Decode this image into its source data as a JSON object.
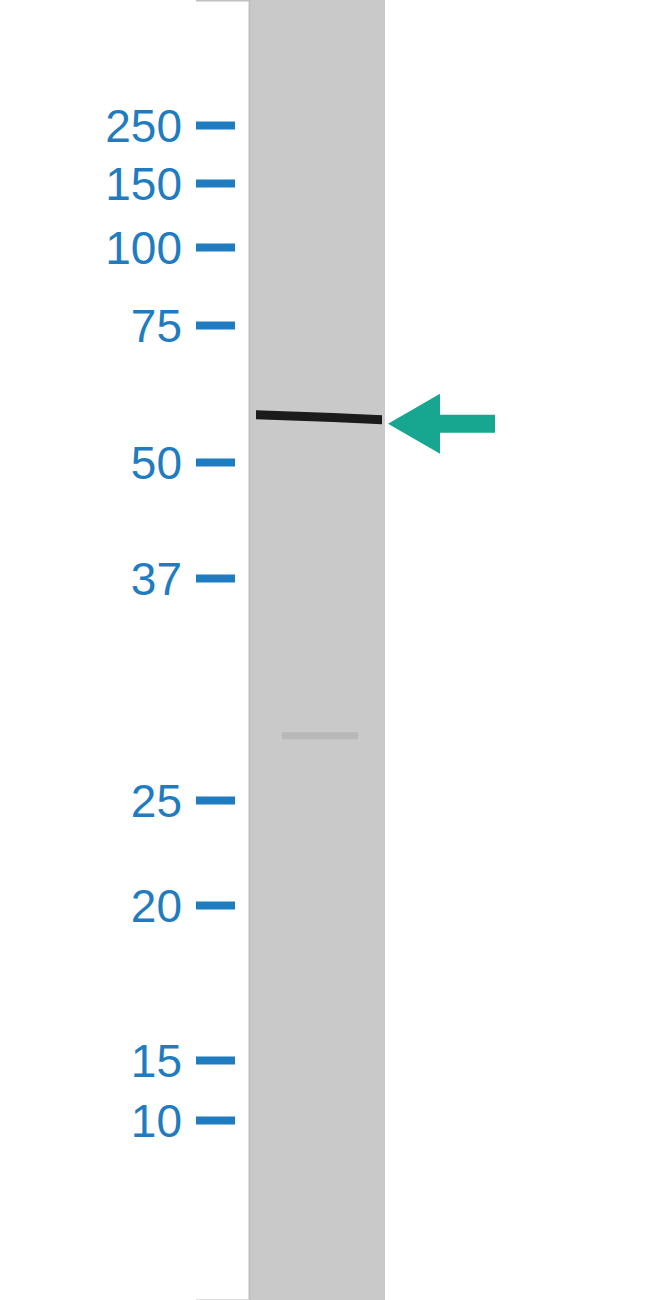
{
  "chart_data": {
    "type": "blot",
    "log": "y",
    "ylim": [
      750,
      3
    ],
    "yticks": [
      250,
      150,
      100,
      75,
      50,
      37,
      25,
      20,
      15,
      10
    ],
    "values": [
      57,
      28
    ],
    "tick_labels": "y"
  }
}
